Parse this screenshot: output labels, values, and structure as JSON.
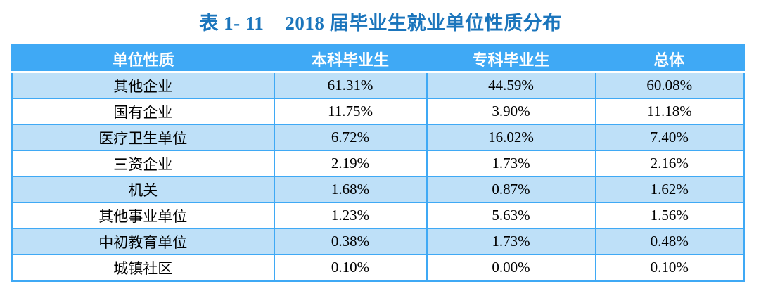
{
  "title": {
    "prefix": "表 1- 11",
    "text": "2018 届毕业生就业单位性质分布"
  },
  "chart_data": {
    "type": "table",
    "title": "表 1- 11 2018 届毕业生就业单位性质分布",
    "columns": [
      "单位性质",
      "本科毕业生",
      "专科毕业生",
      "总体"
    ],
    "rows": [
      [
        "其他企业",
        "61.31%",
        "44.59%",
        "60.08%"
      ],
      [
        "国有企业",
        "11.75%",
        "3.90%",
        "11.18%"
      ],
      [
        "医疗卫生单位",
        "6.72%",
        "16.02%",
        "7.40%"
      ],
      [
        "三资企业",
        "2.19%",
        "1.73%",
        "2.16%"
      ],
      [
        "机关",
        "1.68%",
        "0.87%",
        "1.62%"
      ],
      [
        "其他事业单位",
        "1.23%",
        "5.63%",
        "1.56%"
      ],
      [
        "中初教育单位",
        "0.38%",
        "1.73%",
        "0.48%"
      ],
      [
        "城镇社区",
        "0.10%",
        "0.00%",
        "0.10%"
      ]
    ]
  },
  "colors": {
    "title_blue": "#1B75BC",
    "header_bg": "#3FA9F5",
    "border_blue": "#3FA9F5",
    "row_alt_bg": "#BEE0F8",
    "row_bg": "#FFFFFF",
    "header_text": "#FFFFFF",
    "body_text": "#000000"
  }
}
